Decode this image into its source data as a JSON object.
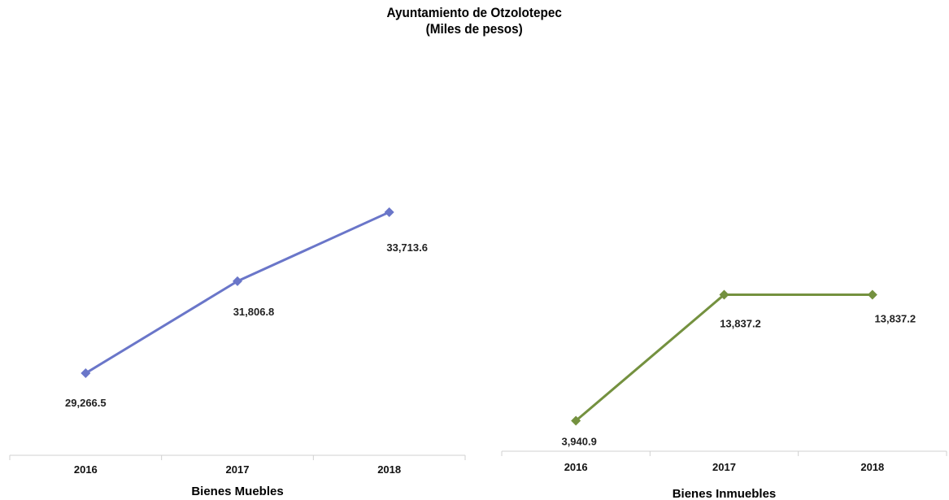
{
  "header": {
    "title": "Ayuntamiento de Otzolotepec",
    "subtitle": "(Miles de pesos)"
  },
  "chart_data": [
    {
      "type": "line",
      "categories": [
        "2016",
        "2017",
        "2018"
      ],
      "series": [
        {
          "values": [
            29266.5,
            31806.8,
            33713.6
          ],
          "labels": [
            "29,266.5",
            "31,806.8",
            "33,713.6"
          ],
          "color": "#6a76c9",
          "marker": "diamond"
        }
      ],
      "xlabel": "Bienes Muebles",
      "ylim": [
        27000,
        38000
      ],
      "grid": false
    },
    {
      "type": "line",
      "categories": [
        "2016",
        "2017",
        "2018"
      ],
      "series": [
        {
          "values": [
            3940.9,
            13837.2,
            13837.2
          ],
          "labels": [
            "3,940.9",
            "13,837.2",
            "13,837.2"
          ],
          "color": "#74913f",
          "marker": "diamond"
        }
      ],
      "xlabel": "Bienes Inmuebles",
      "ylim": [
        1550,
        32500
      ],
      "grid": false
    }
  ]
}
